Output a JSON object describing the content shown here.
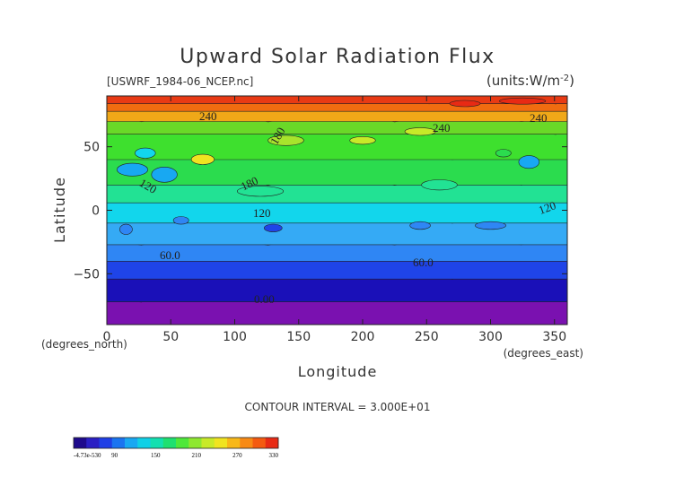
{
  "chart_data": {
    "type": "heatmap",
    "title": "Upward Solar Radiation Flux",
    "dataset": "[USWRF_1984-06_NCEP.nc]",
    "units": "(units:W/m^-2)",
    "xlabel": "Longitude",
    "ylabel": "Latitude",
    "x_unit_label": "(degrees_east)",
    "y_unit_label": "(degrees_north)",
    "xlim": [
      0,
      360
    ],
    "ylim": [
      -90,
      90
    ],
    "x_ticks": [
      0,
      50,
      100,
      150,
      200,
      250,
      300,
      350
    ],
    "y_ticks": [
      -50,
      0,
      50
    ],
    "contour_interval_text": "CONTOUR INTERVAL = 3.000E+01",
    "contour_labels": [
      "240",
      "240",
      "240",
      "180",
      "180",
      "120",
      "120",
      "120",
      "60.0",
      "60.0",
      "0.00"
    ],
    "colorbar": {
      "tick_labels": [
        "-4.73e-530",
        "90",
        "150",
        "210",
        "270",
        "330"
      ],
      "range": [
        0,
        330
      ],
      "colors": [
        "#1e0a8c",
        "#2a1fc4",
        "#1f3fe6",
        "#1a74f0",
        "#18a8f2",
        "#10d0e6",
        "#12e0b0",
        "#1ee070",
        "#4ee83a",
        "#8ee830",
        "#c8ea28",
        "#f0e420",
        "#f8b818",
        "#f88a14",
        "#f45a10",
        "#e82a14"
      ]
    },
    "latitude_band_colors": [
      {
        "lat_from": -90,
        "lat_to": -70,
        "color": "#7a11b0"
      },
      {
        "lat_from": -70,
        "lat_to": -52,
        "color": "#1a10b8"
      },
      {
        "lat_from": -52,
        "lat_to": -38,
        "color": "#1f44e8"
      },
      {
        "lat_from": -38,
        "lat_to": -25,
        "color": "#2f86f4"
      },
      {
        "lat_from": -25,
        "lat_to": -8,
        "color": "#35aaf5"
      },
      {
        "lat_from": -8,
        "lat_to": 8,
        "color": "#12d6ec"
      },
      {
        "lat_from": 8,
        "lat_to": 22,
        "color": "#22e294"
      },
      {
        "lat_from": 22,
        "lat_to": 42,
        "color": "#2bdc4e"
      },
      {
        "lat_from": 42,
        "lat_to": 62,
        "color": "#3ee02e"
      },
      {
        "lat_from": 62,
        "lat_to": 72,
        "color": "#6ad828"
      },
      {
        "lat_from": 72,
        "lat_to": 80,
        "color": "#f0a818"
      },
      {
        "lat_from": 80,
        "lat_to": 86,
        "color": "#f06c10"
      },
      {
        "lat_from": 86,
        "lat_to": 90,
        "color": "#e83a14"
      }
    ]
  }
}
